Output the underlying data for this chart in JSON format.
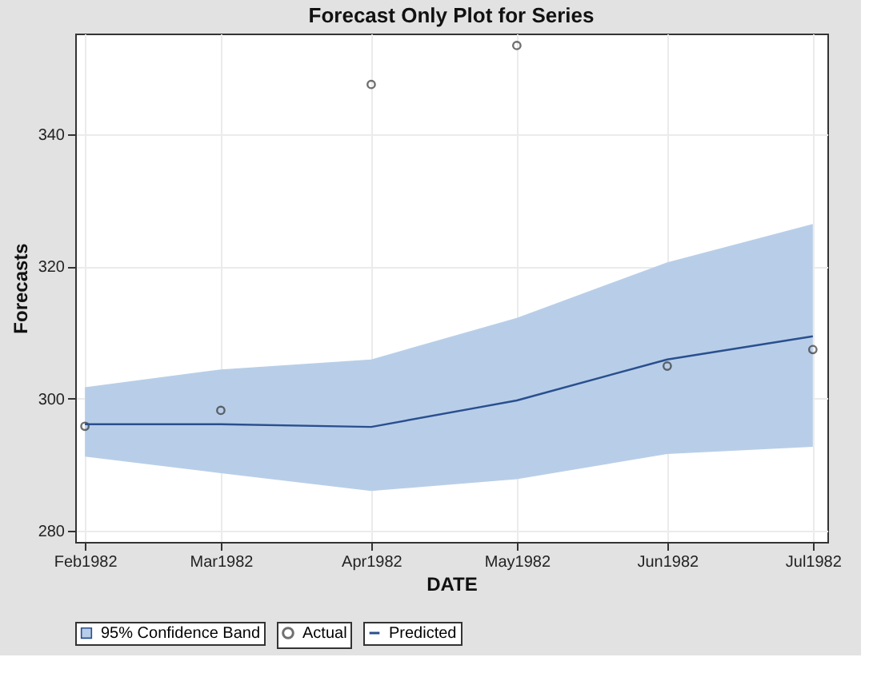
{
  "chart_data": {
    "type": "line",
    "title": "Forecast Only Plot for Series",
    "xlabel": "DATE",
    "ylabel": "Forecasts",
    "x": [
      "1982-02-01",
      "1982-03-01",
      "1982-04-01",
      "1982-05-01",
      "1982-06-01",
      "1982-07-01"
    ],
    "series": [
      {
        "name": "Actual",
        "type": "scatter",
        "marker": "circle",
        "color": "#333333",
        "values": [
          295.8,
          298.2,
          347.5,
          353.4,
          304.9,
          307.4
        ]
      },
      {
        "name": "Predicted",
        "color": "#2a4f8f",
        "values": [
          296.1,
          296.1,
          295.7,
          299.7,
          305.9,
          309.4
        ],
        "lower": [
          291.2,
          288.7,
          286.0,
          287.8,
          291.6,
          292.7
        ],
        "upper": [
          301.7,
          304.4,
          305.9,
          312.2,
          320.6,
          326.4
        ]
      }
    ],
    "annotations": [
      "95% Confidence Band"
    ],
    "ylim": [
      278.3,
      355.2
    ],
    "yticks": [
      280,
      300,
      320,
      340
    ],
    "xlim": [
      "1982-01-30",
      "1982-07-04"
    ],
    "xticks": [
      {
        "value": "1982-02-01",
        "label": "Feb1982"
      },
      {
        "value": "1982-03-01",
        "label": "Mar1982"
      },
      {
        "value": "1982-04-01",
        "label": "Apr1982"
      },
      {
        "value": "1982-05-01",
        "label": "May1982"
      },
      {
        "value": "1982-06-01",
        "label": "Jun1982"
      },
      {
        "value": "1982-07-01",
        "label": "Jul1982"
      }
    ],
    "grid": true,
    "legend": "bottom"
  }
}
